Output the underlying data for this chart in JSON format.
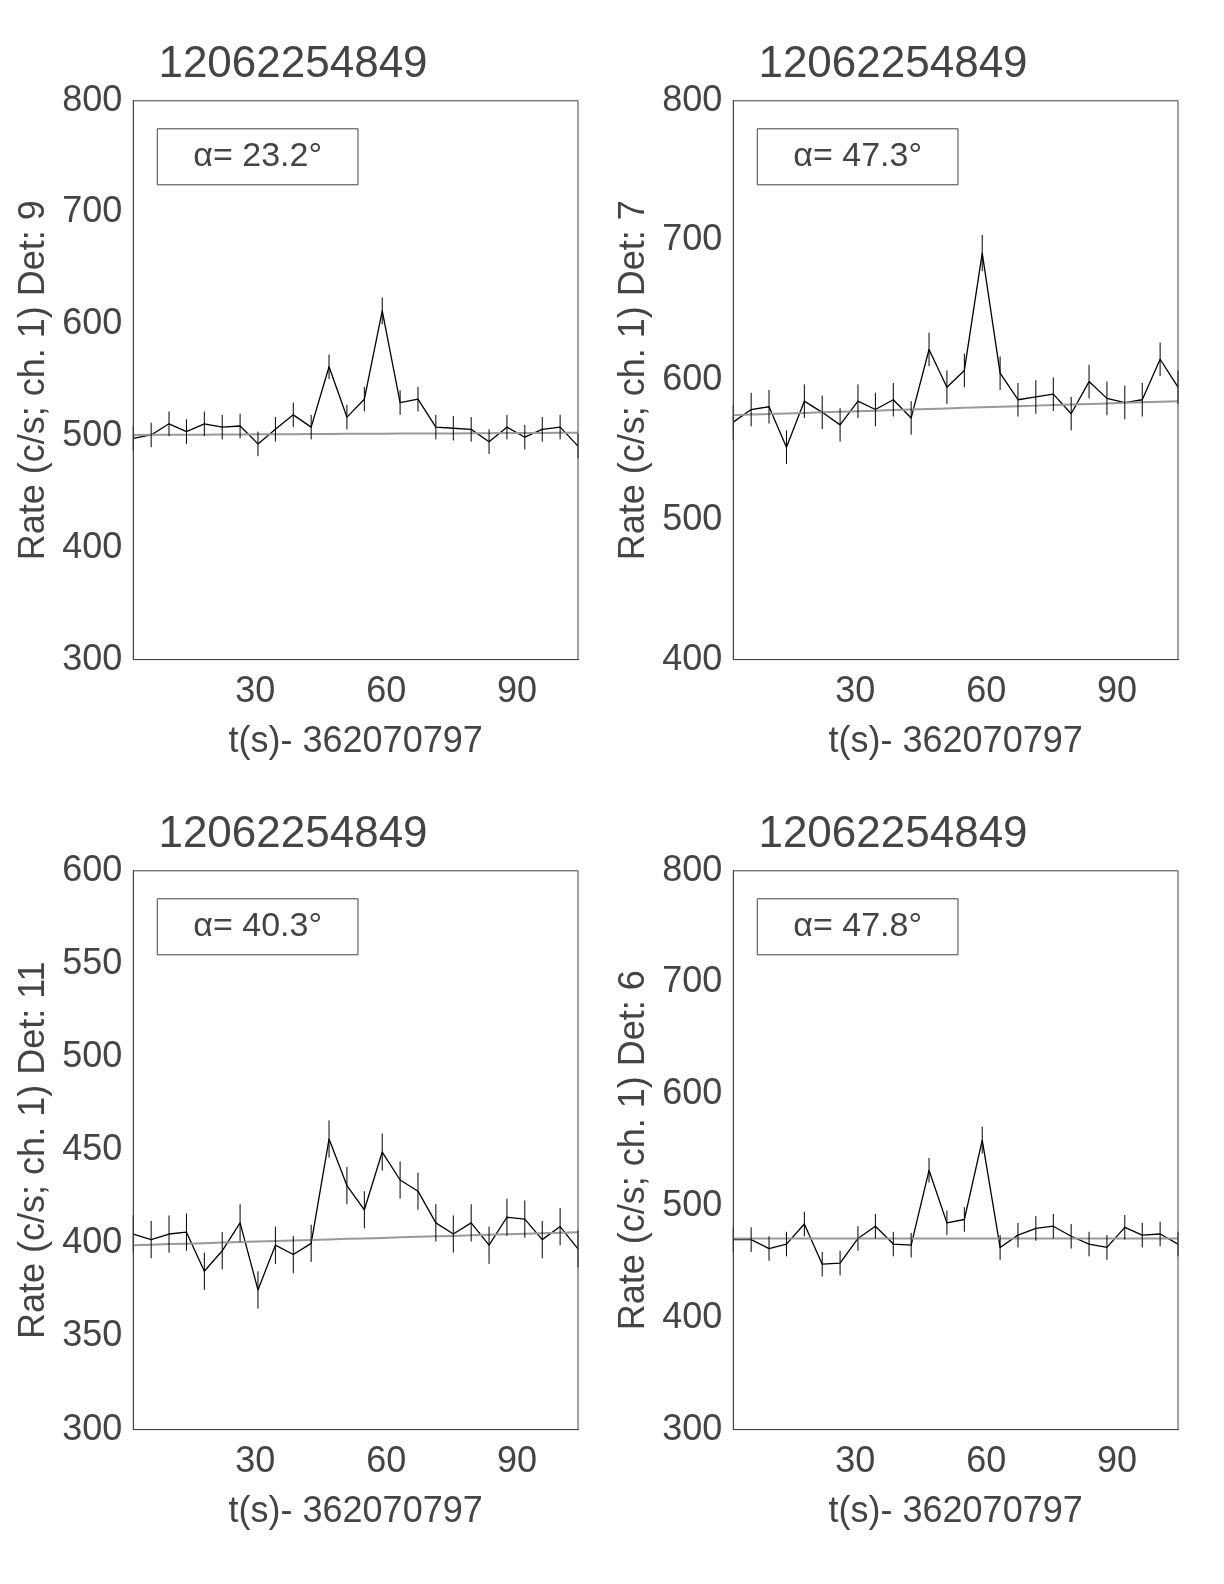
{
  "chart_data": [
    {
      "type": "line",
      "title": "12062254849",
      "xlabel": "t(s)- 362070797",
      "ylabel": "Rate (c/s; ch. 1) Det: 9",
      "annotations": [
        "α= 23.2°"
      ],
      "xlim": [
        2,
        104
      ],
      "xticks": [
        30,
        60,
        90
      ],
      "ylim": [
        300,
        800
      ],
      "yticks": [
        300,
        400,
        500,
        600,
        700,
        800
      ],
      "grid": false,
      "legend": false,
      "marker": "none",
      "line_style": "solid",
      "x": [
        2,
        6.1,
        10.2,
        14.2,
        18.3,
        22.4,
        26.5,
        30.6,
        34.6,
        38.7,
        42.8,
        46.9,
        51,
        55,
        59.1,
        63.2,
        67.3,
        71.4,
        75.4,
        79.5,
        83.6,
        87.7,
        91.8,
        95.8,
        99.9,
        104
      ],
      "series": [
        {
          "color": "#000000",
          "values": [
            498,
            501,
            511,
            504,
            511,
            508,
            509,
            493,
            506,
            519,
            508,
            562,
            517,
            533,
            612,
            530,
            533,
            508,
            507,
            506,
            495,
            508,
            499,
            506,
            508,
            491
          ],
          "errors": [
            11,
            11,
            11,
            11,
            11,
            11,
            11,
            11,
            11,
            11,
            11,
            11,
            11,
            11,
            12,
            11,
            11,
            11,
            11,
            11,
            11,
            11,
            11,
            11,
            11,
            11
          ]
        },
        {
          "type": "line",
          "color": "#999999",
          "values": [
            501,
            501.1,
            501.2,
            501.2,
            501.3,
            501.4,
            501.5,
            501.6,
            501.6,
            501.7,
            501.8,
            501.9,
            502,
            502,
            502.1,
            502.2,
            502.3,
            502.4,
            502.4,
            502.5,
            502.6,
            502.7,
            502.8,
            502.8,
            502.9,
            503
          ]
        }
      ]
    },
    {
      "type": "line",
      "title": "12062254849",
      "xlabel": "t(s)- 362070797",
      "ylabel": "Rate (c/s; ch. 1) Det: 7",
      "annotations": [
        "α= 47.3°"
      ],
      "xlim": [
        2,
        104
      ],
      "xticks": [
        30,
        60,
        90
      ],
      "ylim": [
        400,
        800
      ],
      "yticks": [
        400,
        500,
        600,
        700,
        800
      ],
      "grid": false,
      "legend": false,
      "marker": "none",
      "line_style": "solid",
      "x": [
        2,
        6.1,
        10.2,
        14.2,
        18.3,
        22.4,
        26.5,
        30.6,
        34.6,
        38.7,
        42.8,
        46.9,
        51,
        55,
        59.1,
        63.2,
        67.3,
        71.4,
        75.4,
        79.5,
        83.6,
        87.7,
        91.8,
        95.8,
        99.9,
        104
      ],
      "series": [
        {
          "color": "#000000",
          "values": [
            570,
            579,
            581,
            552,
            585,
            577,
            568,
            585,
            579,
            586,
            573,
            622,
            595,
            607,
            691,
            605,
            586,
            588,
            590,
            576,
            599,
            587,
            584,
            586,
            615,
            595
          ],
          "errors": [
            12,
            12,
            12,
            12,
            12,
            12,
            12,
            12,
            12,
            12,
            12,
            12,
            12,
            12,
            13,
            12,
            12,
            12,
            12,
            12,
            12,
            12,
            12,
            12,
            12,
            12
          ]
        },
        {
          "type": "line",
          "color": "#999999",
          "values": [
            575,
            575.4,
            575.8,
            576.2,
            576.6,
            577,
            577.4,
            577.8,
            578.2,
            578.6,
            579,
            579.4,
            579.8,
            580.2,
            580.6,
            581,
            581.4,
            581.8,
            582.2,
            582.6,
            583,
            583.4,
            583.8,
            584.2,
            584.6,
            585
          ]
        }
      ]
    },
    {
      "type": "line",
      "title": "12062254849",
      "xlabel": "t(s)- 362070797",
      "ylabel": "Rate (c/s; ch. 1) Det: 11",
      "annotations": [
        "α= 40.3°"
      ],
      "xlim": [
        2,
        104
      ],
      "xticks": [
        30,
        60,
        90
      ],
      "ylim": [
        300,
        600
      ],
      "yticks": [
        300,
        350,
        400,
        450,
        500,
        550,
        600
      ],
      "grid": false,
      "legend": false,
      "marker": "none",
      "line_style": "solid",
      "x": [
        2,
        6.1,
        10.2,
        14.2,
        18.3,
        22.4,
        26.5,
        30.6,
        34.6,
        38.7,
        42.8,
        46.9,
        51,
        55,
        59.1,
        63.2,
        67.3,
        71.4,
        75.4,
        79.5,
        83.6,
        87.7,
        91.8,
        95.8,
        99.9,
        104
      ],
      "series": [
        {
          "color": "#000000",
          "values": [
            405,
            402,
            405,
            406,
            385,
            396,
            411,
            375,
            399,
            394,
            400,
            456,
            431,
            418,
            449,
            434,
            428,
            411,
            405,
            411,
            399,
            414,
            413,
            402,
            409,
            397
          ],
          "errors": [
            10,
            10,
            10,
            10,
            10,
            10,
            10,
            10,
            10,
            10,
            10,
            10,
            10,
            10,
            10,
            10,
            10,
            10,
            10,
            10,
            10,
            10,
            10,
            10,
            10,
            10
          ]
        },
        {
          "type": "line",
          "color": "#999999",
          "values": [
            399,
            399.3,
            399.6,
            399.8,
            400.1,
            400.4,
            400.7,
            401,
            401.2,
            401.5,
            401.8,
            402.1,
            402.4,
            402.6,
            402.9,
            403.2,
            403.5,
            403.8,
            404,
            404.3,
            404.6,
            404.9,
            405.2,
            405.4,
            405.7,
            406
          ]
        }
      ]
    },
    {
      "type": "line",
      "title": "12062254849",
      "xlabel": "t(s)- 362070797",
      "ylabel": "Rate (c/s; ch. 1) Det: 6",
      "annotations": [
        "α= 47.8°"
      ],
      "xlim": [
        2,
        104
      ],
      "xticks": [
        30,
        60,
        90
      ],
      "ylim": [
        300,
        800
      ],
      "yticks": [
        300,
        400,
        500,
        600,
        700,
        800
      ],
      "grid": false,
      "legend": false,
      "marker": "none",
      "line_style": "solid",
      "x": [
        2,
        6.1,
        10.2,
        14.2,
        18.3,
        22.4,
        26.5,
        30.6,
        34.6,
        38.7,
        42.8,
        46.9,
        51,
        55,
        59.1,
        63.2,
        67.3,
        71.4,
        75.4,
        79.5,
        83.6,
        87.7,
        91.8,
        95.8,
        99.9,
        104
      ],
      "series": [
        {
          "color": "#000000",
          "values": [
            470,
            470,
            462,
            466,
            484,
            448,
            449,
            471,
            482,
            466,
            465,
            532,
            485,
            488,
            559,
            463,
            474,
            480,
            482,
            473,
            466,
            463,
            481,
            474,
            475,
            466
          ],
          "errors": [
            11,
            11,
            11,
            11,
            11,
            11,
            11,
            11,
            11,
            11,
            11,
            11,
            11,
            11,
            12,
            11,
            11,
            11,
            11,
            11,
            11,
            11,
            11,
            11,
            11,
            11
          ]
        },
        {
          "type": "line",
          "color": "#999999",
          "values": [
            471,
            471,
            471,
            471,
            471,
            471,
            471,
            471,
            471,
            471,
            471,
            471,
            471,
            471,
            471,
            471,
            471,
            471,
            471,
            471,
            471,
            471,
            471,
            471,
            471,
            471
          ]
        }
      ]
    }
  ]
}
